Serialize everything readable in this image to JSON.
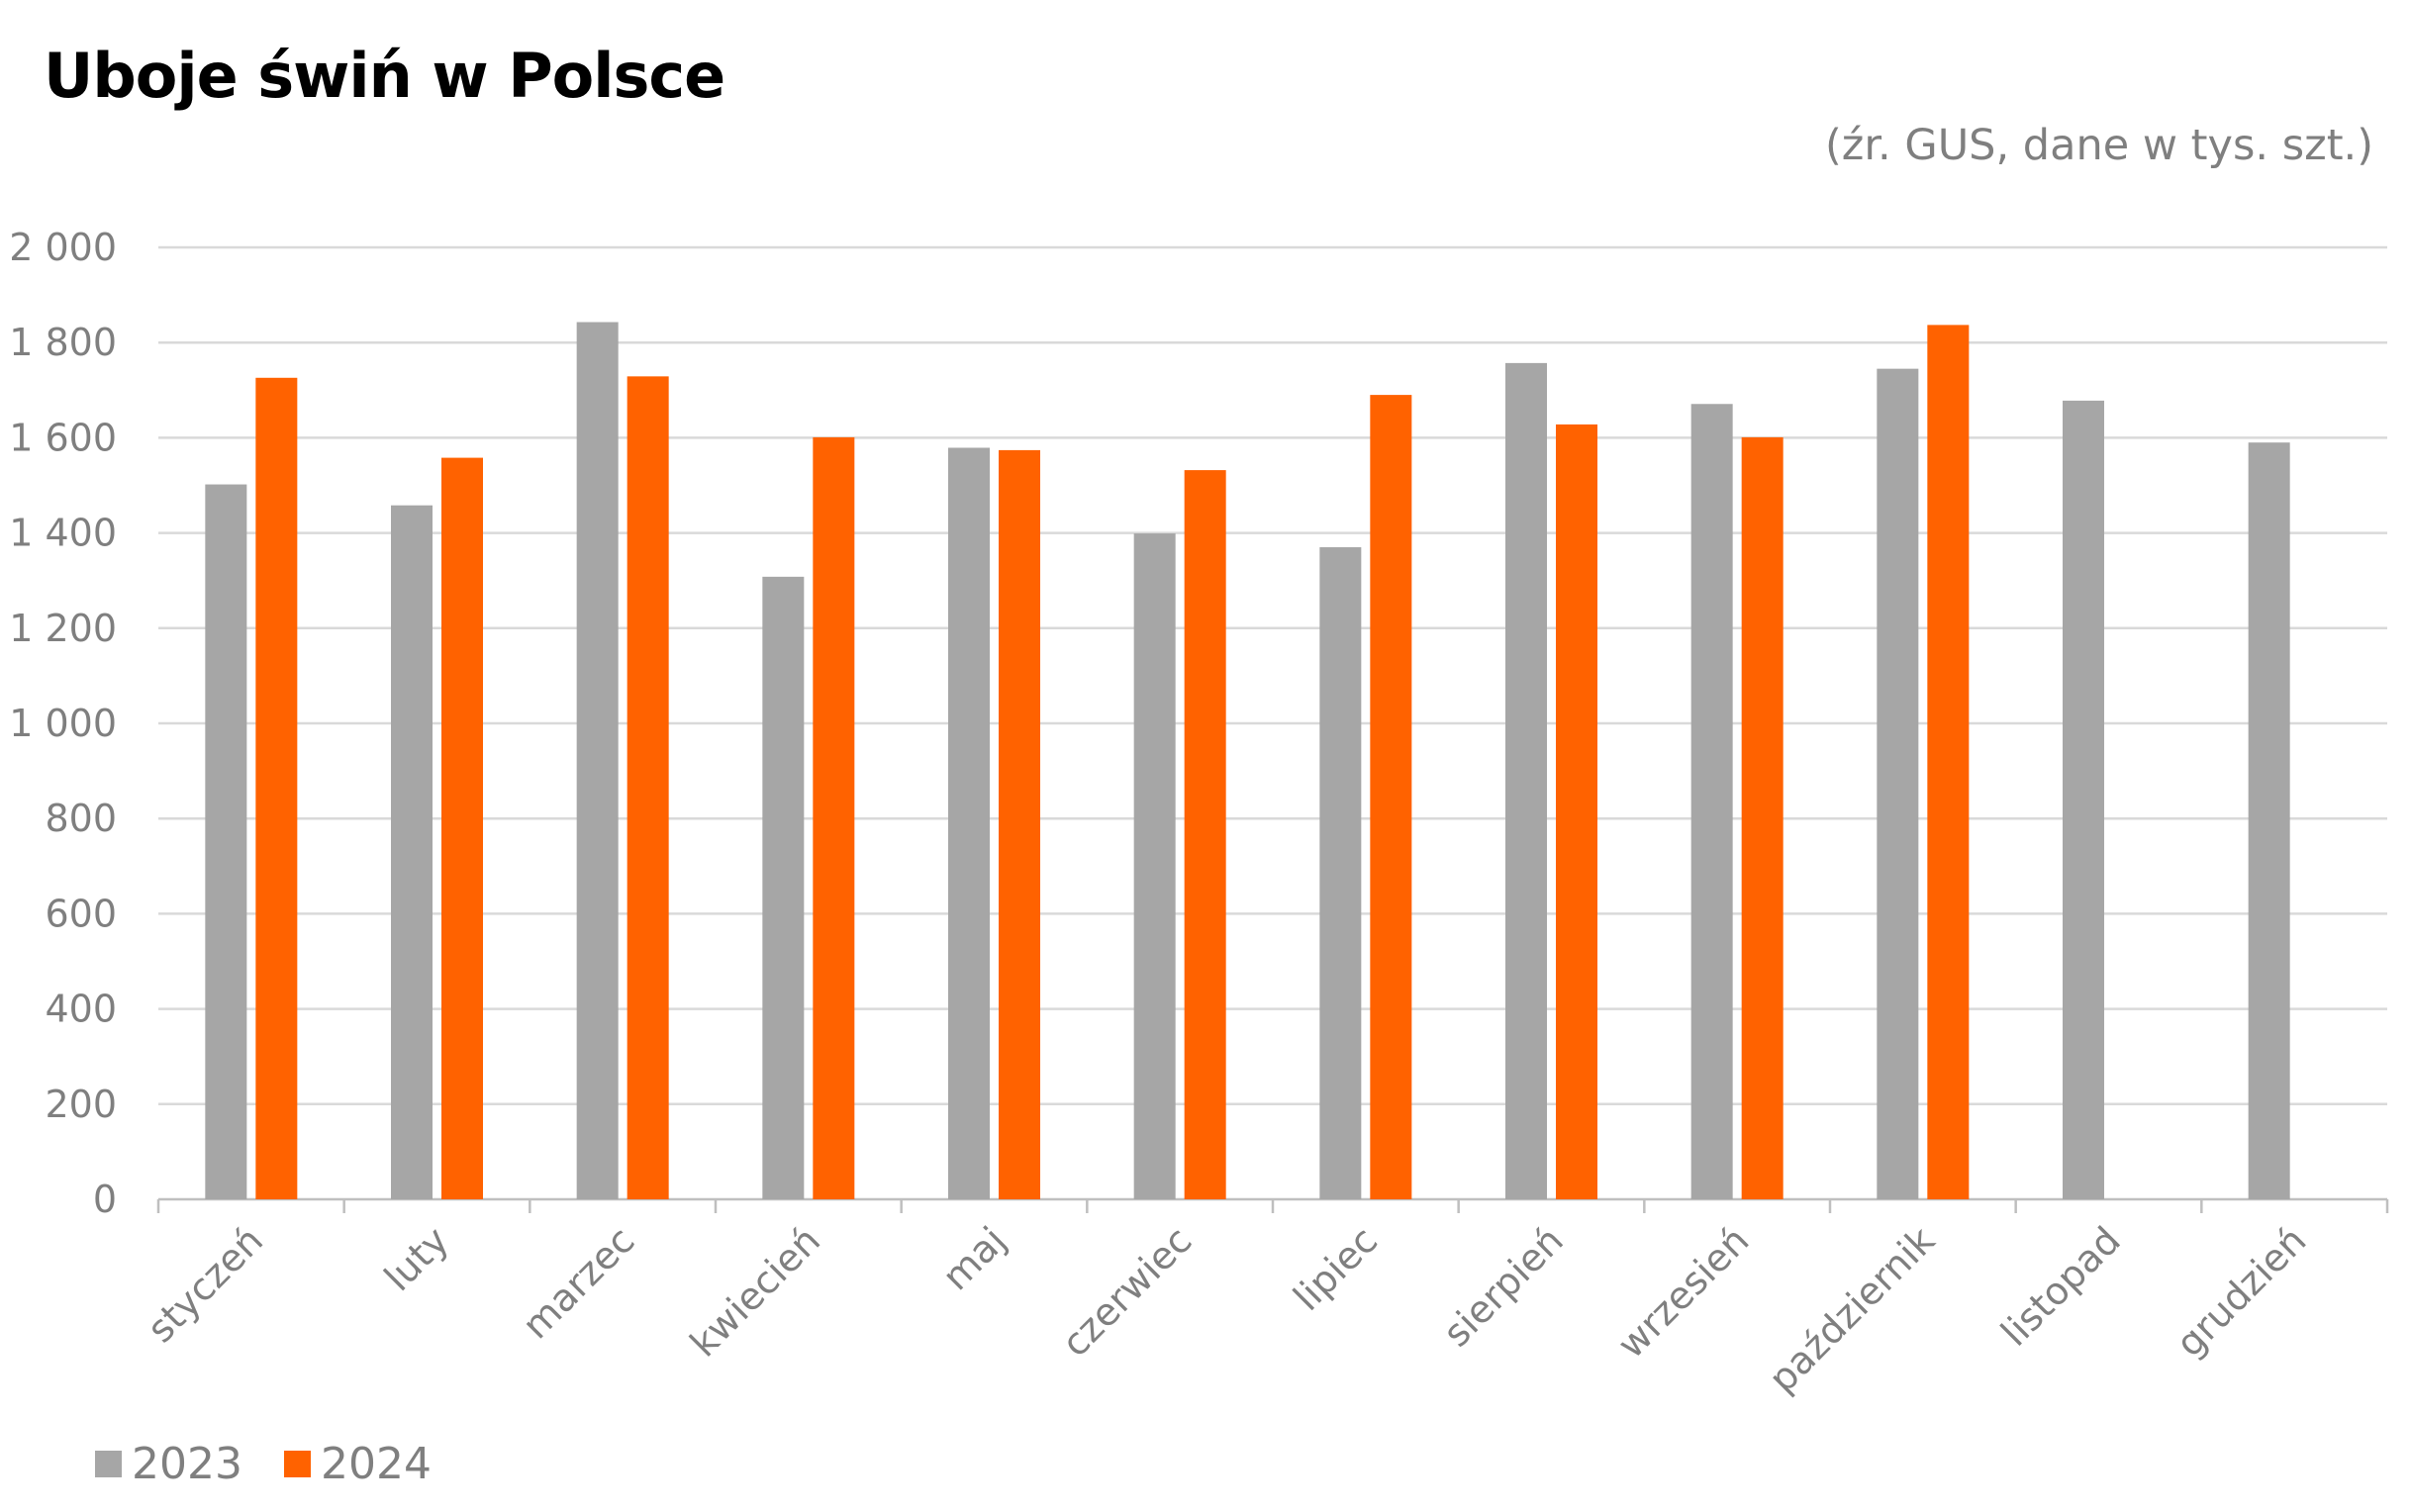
{
  "chart_data": {
    "type": "bar",
    "title": "Uboje świń w Polsce",
    "subtitle": "(źr. GUS, dane w tys. szt.)",
    "xlabel": "",
    "ylabel": "",
    "ylim": [
      0,
      2000
    ],
    "yticks": [
      0,
      200,
      400,
      600,
      800,
      1000,
      1200,
      1400,
      1600,
      1800,
      2000
    ],
    "ytick_labels": [
      "0",
      "200",
      "400",
      "600",
      "800",
      "1 000",
      "1 200",
      "1 400",
      "1 600",
      "1 800",
      "2 000"
    ],
    "grid": true,
    "legend_position": "bottom-left",
    "categories": [
      "styczeń",
      "luty",
      "marzec",
      "kwiecień",
      "maj",
      "czerwiec",
      "lipiec",
      "sierpień",
      "wrzesień",
      "październik",
      "listopad",
      "grudzień"
    ],
    "series": [
      {
        "name": "2023",
        "color": "#a6a6a6",
        "values": [
          1502,
          1458,
          1843,
          1308,
          1579,
          1399,
          1370,
          1757,
          1671,
          1745,
          1678,
          1590
        ]
      },
      {
        "name": "2024",
        "color": "#ff6200",
        "values": [
          1726,
          1558,
          1729,
          1601,
          1574,
          1532,
          1690,
          1628,
          1601,
          1837,
          null,
          null
        ]
      }
    ]
  }
}
